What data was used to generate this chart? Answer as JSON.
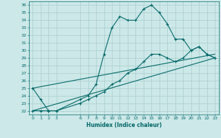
{
  "xlabel": "Humidex (Indice chaleur)",
  "bg_color": "#cce8e8",
  "grid_color": "#aacccc",
  "line_color": "#006666",
  "xlim": [
    -0.5,
    23.5
  ],
  "ylim": [
    21.5,
    36.5
  ],
  "xticks": [
    0,
    1,
    2,
    3,
    6,
    7,
    8,
    9,
    10,
    11,
    12,
    13,
    14,
    15,
    16,
    17,
    18,
    19,
    20,
    21,
    22,
    23
  ],
  "yticks": [
    22,
    23,
    24,
    25,
    26,
    27,
    28,
    29,
    30,
    31,
    32,
    33,
    34,
    35,
    36
  ],
  "series": [
    {
      "x": [
        0,
        1,
        2,
        3,
        6,
        7,
        8,
        9,
        10,
        11,
        12,
        13,
        14,
        15,
        16,
        17,
        18,
        19,
        20,
        21,
        22,
        23
      ],
      "y": [
        25,
        23.5,
        22,
        22,
        23.5,
        24,
        25.5,
        29.5,
        33,
        34.5,
        34,
        34,
        35.5,
        36,
        35,
        33.5,
        31.5,
        31.5,
        30,
        30.5,
        29.5,
        29
      ],
      "marker": true
    },
    {
      "x": [
        0,
        1,
        2,
        3,
        6,
        7,
        8,
        9,
        10,
        11,
        12,
        13,
        14,
        15,
        16,
        17,
        18,
        19,
        20,
        21,
        22,
        23
      ],
      "y": [
        22,
        22,
        22,
        22,
        23,
        23.5,
        24,
        24.5,
        25.5,
        26,
        27,
        27.5,
        28.5,
        29.5,
        29.5,
        29,
        28.5,
        29,
        30,
        30.5,
        29.5,
        29
      ],
      "marker": true
    },
    {
      "x": [
        0,
        23
      ],
      "y": [
        25,
        29.5
      ],
      "marker": false
    },
    {
      "x": [
        0,
        23
      ],
      "y": [
        22,
        29
      ],
      "marker": false
    }
  ]
}
